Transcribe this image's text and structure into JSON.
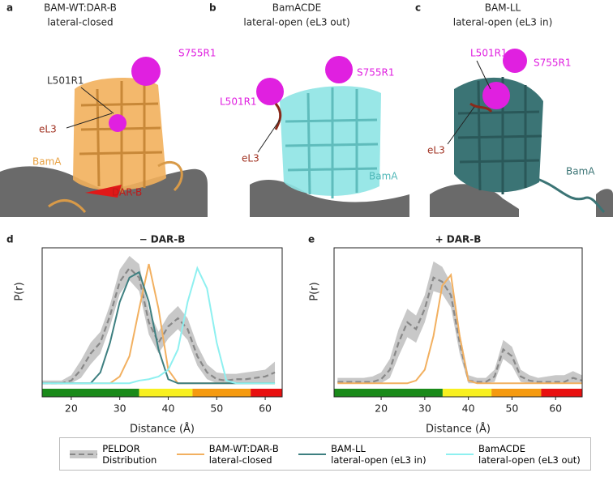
{
  "panels": [
    {
      "letter": "a",
      "title": [
        "BAM-WT:DAR-B",
        "lateral-closed"
      ],
      "labels": [
        {
          "text": "S755R1",
          "color": "#e020e0"
        },
        {
          "text": "L501R1",
          "color": "#333333"
        },
        {
          "text": "eL3",
          "color": "#a03020"
        },
        {
          "text": "BamA",
          "color": "#e8a040"
        },
        {
          "text": "DAR-B",
          "color": "#c01818"
        }
      ]
    },
    {
      "letter": "b",
      "title": [
        "BamACDE",
        "lateral-open (eL3 out)"
      ],
      "labels": [
        {
          "text": "S755R1",
          "color": "#e020e0"
        },
        {
          "text": "L501R1",
          "color": "#e020e0"
        },
        {
          "text": "eL3",
          "color": "#a03020"
        },
        {
          "text": "BamA",
          "color": "#50b8b8"
        }
      ]
    },
    {
      "letter": "c",
      "title": [
        "BAM-LL",
        "lateral-open (eL3 in)"
      ],
      "labels": [
        {
          "text": "L501R1",
          "color": "#e020e0"
        },
        {
          "text": "S755R1",
          "color": "#e020e0"
        },
        {
          "text": "eL3",
          "color": "#a03020"
        },
        {
          "text": "BamA",
          "color": "#3b7475"
        }
      ]
    }
  ],
  "chart_data": [
    {
      "type": "line",
      "letter": "d",
      "title": "− DAR-B",
      "x_label": "Distance (Å)",
      "y_label": "P(r)",
      "xlim": [
        14,
        63.5
      ],
      "ylim": [
        -0.1,
        1.0
      ],
      "xticks": [
        20,
        30,
        40,
        50,
        60
      ],
      "x": [
        14,
        16,
        18,
        20,
        22,
        24,
        26,
        28,
        30,
        32,
        34,
        36,
        38,
        40,
        42,
        44,
        46,
        48,
        50,
        52,
        54,
        56,
        58,
        60,
        62
      ],
      "color_bar": [
        {
          "from": 14,
          "to": 34,
          "color": "#1a8a1a"
        },
        {
          "from": 34,
          "to": 45,
          "color": "#f8f020"
        },
        {
          "from": 45,
          "to": 57,
          "color": "#f59a10"
        },
        {
          "from": 57,
          "to": 63.5,
          "color": "#e81010"
        }
      ],
      "series": [
        {
          "name": "PELDOR\nDistribution",
          "color": "#888888",
          "style": "dashed",
          "band_color": "#c8c8c8",
          "values": [
            0,
            0,
            0,
            0.02,
            0.1,
            0.22,
            0.3,
            0.5,
            0.75,
            0.85,
            0.78,
            0.45,
            0.3,
            0.42,
            0.48,
            0.4,
            0.2,
            0.08,
            0.03,
            0.02,
            0.03,
            0.03,
            0.04,
            0.05,
            0.08
          ],
          "lower": [
            0,
            0,
            0,
            0,
            0.04,
            0.14,
            0.22,
            0.42,
            0.66,
            0.76,
            0.68,
            0.36,
            0.22,
            0.33,
            0.4,
            0.32,
            0.13,
            0.03,
            0,
            0,
            0,
            0,
            0,
            0,
            0
          ],
          "upper": [
            0.02,
            0.02,
            0.02,
            0.06,
            0.17,
            0.3,
            0.38,
            0.58,
            0.84,
            0.94,
            0.88,
            0.54,
            0.38,
            0.5,
            0.57,
            0.48,
            0.28,
            0.14,
            0.08,
            0.07,
            0.07,
            0.08,
            0.09,
            0.1,
            0.16
          ]
        },
        {
          "name": "BAM-WT:DAR-B\nlateral-closed",
          "color": "#f2b060",
          "style": "solid",
          "values": [
            0,
            0,
            0,
            0,
            0,
            0,
            0,
            0,
            0.05,
            0.2,
            0.55,
            0.88,
            0.55,
            0.1,
            0,
            0,
            0,
            0,
            0,
            0,
            0,
            0,
            0,
            0,
            0
          ]
        },
        {
          "name": "BAM-LL\nlateral-open (eL3 in)",
          "color": "#3d7f80",
          "style": "solid",
          "values": [
            0,
            0,
            0,
            0,
            0,
            0,
            0.08,
            0.3,
            0.6,
            0.78,
            0.82,
            0.6,
            0.25,
            0.03,
            0,
            0,
            0,
            0,
            0,
            0,
            0,
            0,
            0,
            0,
            0
          ]
        },
        {
          "name": "BamACDE\nlateral-open (eL3 out)",
          "color": "#8ef0f0",
          "style": "solid",
          "values": [
            0,
            0,
            0,
            0,
            0,
            0,
            0,
            0,
            0,
            0,
            0.02,
            0.03,
            0.05,
            0.1,
            0.25,
            0.6,
            0.85,
            0.7,
            0.3,
            0.02,
            0,
            0,
            0,
            0,
            0
          ]
        }
      ]
    },
    {
      "type": "line",
      "letter": "e",
      "title": "+ DAR-B",
      "x_label": "Distance (Å)",
      "y_label": "P(r)",
      "xlim": [
        9.2,
        66.1
      ],
      "ylim": [
        -0.1,
        1.0
      ],
      "xticks": [
        20,
        30,
        40,
        50,
        60
      ],
      "x": [
        10,
        12,
        14,
        16,
        18,
        20,
        22,
        24,
        26,
        28,
        30,
        32,
        34,
        36,
        38,
        40,
        42,
        44,
        46,
        48,
        50,
        52,
        54,
        56,
        58,
        60,
        62,
        64,
        66
      ],
      "color_bar": [
        {
          "from": 9.2,
          "to": 34.1,
          "color": "#1a8a1a"
        },
        {
          "from": 34.1,
          "to": 45.3,
          "color": "#f8f020"
        },
        {
          "from": 45.3,
          "to": 56.7,
          "color": "#f59a10"
        },
        {
          "from": 56.7,
          "to": 66.1,
          "color": "#e81010"
        }
      ],
      "series": [
        {
          "color": "#888888",
          "style": "dashed",
          "band_color": "#c8c8c8",
          "values": [
            0.01,
            0.01,
            0.01,
            0.01,
            0.01,
            0.03,
            0.1,
            0.3,
            0.45,
            0.4,
            0.55,
            0.78,
            0.75,
            0.65,
            0.3,
            0.02,
            0.01,
            0.01,
            0.05,
            0.25,
            0.2,
            0.05,
            0.02,
            0.01,
            0.01,
            0.01,
            0.01,
            0.04,
            0.02
          ],
          "lower": [
            0,
            0,
            0,
            0,
            0,
            0,
            0.04,
            0.2,
            0.34,
            0.3,
            0.45,
            0.68,
            0.66,
            0.56,
            0.22,
            0,
            0,
            0,
            0.01,
            0.18,
            0.13,
            0.01,
            0,
            0,
            0,
            0,
            0,
            0,
            0
          ],
          "upper": [
            0.04,
            0.04,
            0.04,
            0.04,
            0.05,
            0.08,
            0.18,
            0.4,
            0.55,
            0.5,
            0.65,
            0.9,
            0.86,
            0.74,
            0.38,
            0.06,
            0.04,
            0.04,
            0.1,
            0.32,
            0.27,
            0.1,
            0.06,
            0.04,
            0.05,
            0.06,
            0.06,
            0.09,
            0.06
          ]
        },
        {
          "color": "#f2b060",
          "style": "solid",
          "values": [
            0,
            0,
            0,
            0,
            0,
            0,
            0,
            0,
            0,
            0.02,
            0.1,
            0.35,
            0.72,
            0.8,
            0.35,
            0.02,
            0,
            0,
            0,
            0,
            0,
            0,
            0,
            0,
            0,
            0,
            0,
            0,
            0
          ]
        }
      ]
    }
  ]
}
